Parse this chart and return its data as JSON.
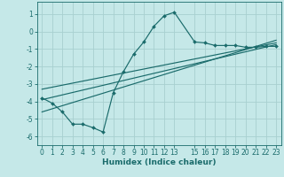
{
  "xlabel": "Humidex (Indice chaleur)",
  "background_color": "#c5e8e8",
  "grid_color": "#a8d0d0",
  "line_color": "#1a6b6b",
  "xlim": [
    -0.5,
    23.5
  ],
  "ylim": [
    -6.5,
    1.7
  ],
  "yticks": [
    1,
    0,
    -1,
    -2,
    -3,
    -4,
    -5,
    -6
  ],
  "xticks": [
    0,
    1,
    2,
    3,
    4,
    5,
    6,
    7,
    8,
    9,
    10,
    11,
    12,
    13,
    15,
    16,
    17,
    18,
    19,
    20,
    21,
    22,
    23
  ],
  "curve1_x": [
    0,
    1,
    2,
    3,
    4,
    5,
    6,
    7,
    8,
    9,
    10,
    11,
    12,
    13,
    15,
    16,
    17,
    18,
    19,
    20,
    21,
    22,
    23
  ],
  "curve1_y": [
    -3.8,
    -4.1,
    -4.6,
    -5.3,
    -5.3,
    -5.5,
    -5.75,
    -3.5,
    -2.3,
    -1.3,
    -0.6,
    0.3,
    0.9,
    1.1,
    -0.6,
    -0.65,
    -0.8,
    -0.8,
    -0.8,
    -0.9,
    -0.9,
    -0.85,
    -0.85
  ],
  "line1_x": [
    0,
    23
  ],
  "line1_y": [
    -3.9,
    -0.75
  ],
  "line2_x": [
    0,
    23
  ],
  "line2_y": [
    -4.6,
    -0.5
  ],
  "line3_x": [
    0,
    23
  ],
  "line3_y": [
    -3.3,
    -0.65
  ]
}
